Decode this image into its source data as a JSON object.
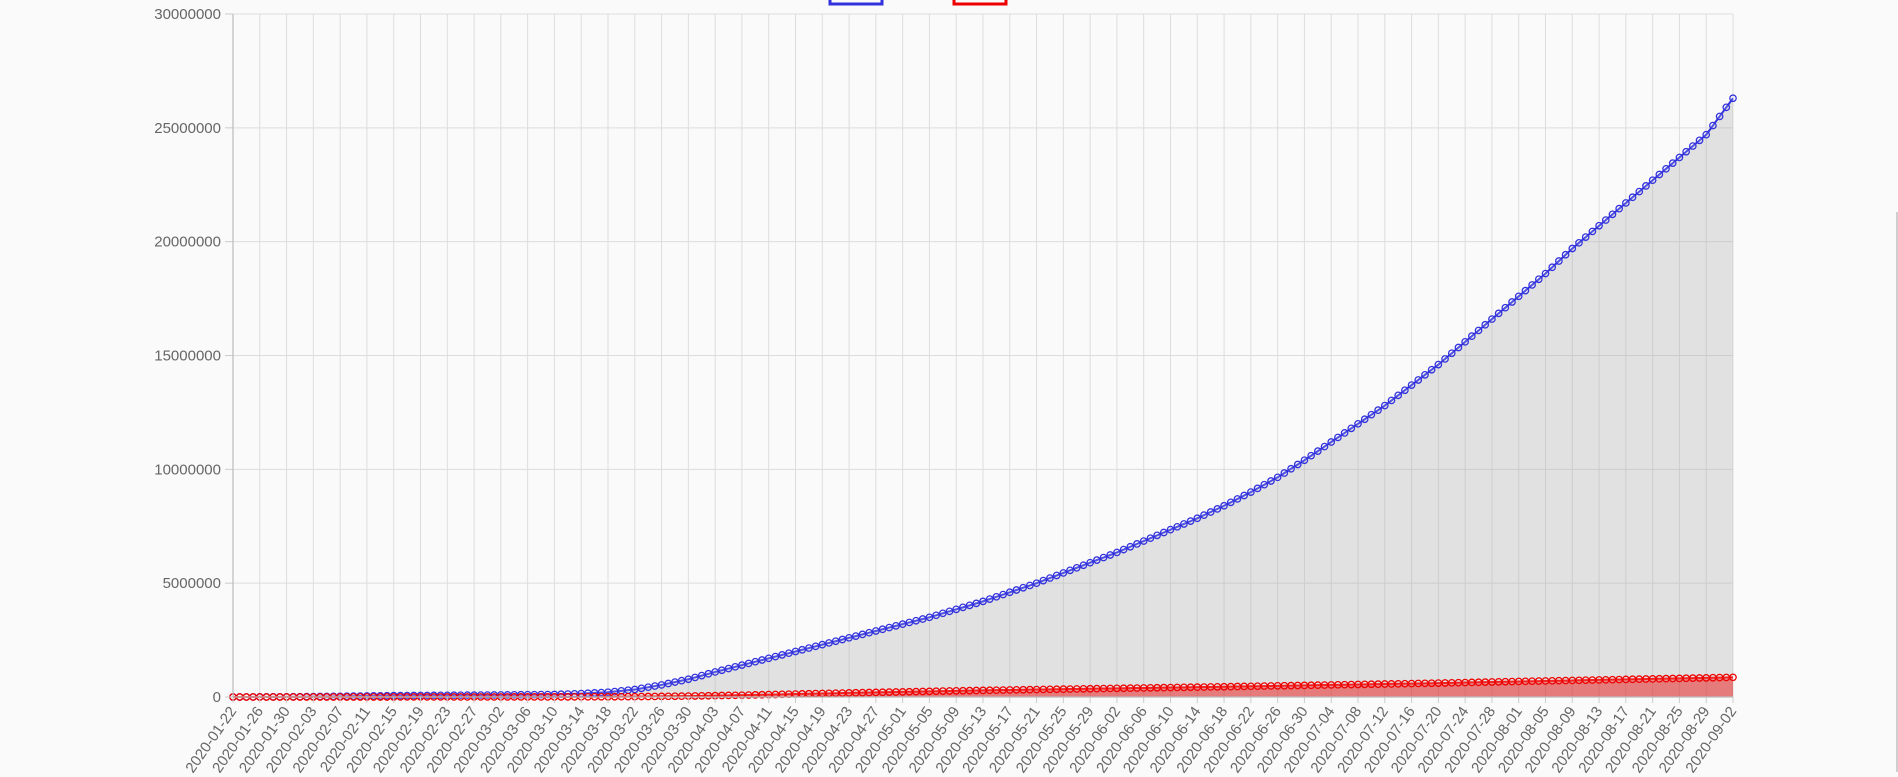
{
  "chart_data": {
    "type": "line",
    "title": "",
    "xlabel": "",
    "ylabel": "",
    "ylim": [
      0,
      30000000
    ],
    "y_ticks": [
      "0",
      "5000000",
      "10000000",
      "15000000",
      "20000000",
      "25000000",
      "30000000"
    ],
    "x_range": [
      "2020-01-22",
      "2020-09-02"
    ],
    "x_tick_labels": [
      "2020-01-22",
      "2020-01-26",
      "2020-01-30",
      "2020-02-03",
      "2020-02-07",
      "2020-02-11",
      "2020-02-15",
      "2020-02-19",
      "2020-02-23",
      "2020-02-27",
      "2020-03-02",
      "2020-03-06",
      "2020-03-10",
      "2020-03-14",
      "2020-03-18",
      "2020-03-22",
      "2020-03-26",
      "2020-03-30",
      "2020-04-03",
      "2020-04-07",
      "2020-04-11",
      "2020-04-15",
      "2020-04-19",
      "2020-04-23",
      "2020-04-27",
      "2020-05-01",
      "2020-05-05",
      "2020-05-09",
      "2020-05-13",
      "2020-05-17",
      "2020-05-21",
      "2020-05-25",
      "2020-05-29",
      "2020-06-02",
      "2020-06-06",
      "2020-06-10",
      "2020-06-14",
      "2020-06-18",
      "2020-06-22",
      "2020-06-26",
      "2020-06-30",
      "2020-07-04",
      "2020-07-08",
      "2020-07-12",
      "2020-07-16",
      "2020-07-20",
      "2020-07-24",
      "2020-07-28",
      "2020-08-01",
      "2020-08-05",
      "2020-08-09",
      "2020-08-13",
      "2020-08-17",
      "2020-08-21",
      "2020-08-25",
      "2020-08-29",
      "2020-09-02"
    ],
    "grid": true,
    "legend": "top-center",
    "series": [
      {
        "color": "#3333dd",
        "fill": "rgba(170,170,170,0.3)",
        "points": [
          [
            "2020-01-22",
            0
          ],
          [
            "2020-01-30",
            8000
          ],
          [
            "2020-02-07",
            30000
          ],
          [
            "2020-02-15",
            60000
          ],
          [
            "2020-02-23",
            75000
          ],
          [
            "2020-03-02",
            90000
          ],
          [
            "2020-03-10",
            110000
          ],
          [
            "2020-03-14",
            150000
          ],
          [
            "2020-03-18",
            210000
          ],
          [
            "2020-03-22",
            330000
          ],
          [
            "2020-03-26",
            530000
          ],
          [
            "2020-03-30",
            780000
          ],
          [
            "2020-04-03",
            1100000
          ],
          [
            "2020-04-07",
            1400000
          ],
          [
            "2020-04-11",
            1700000
          ],
          [
            "2020-04-15",
            2000000
          ],
          [
            "2020-04-19",
            2300000
          ],
          [
            "2020-04-23",
            2600000
          ],
          [
            "2020-04-27",
            2900000
          ],
          [
            "2020-05-01",
            3200000
          ],
          [
            "2020-05-05",
            3500000
          ],
          [
            "2020-05-09",
            3850000
          ],
          [
            "2020-05-13",
            4200000
          ],
          [
            "2020-05-17",
            4600000
          ],
          [
            "2020-05-21",
            5000000
          ],
          [
            "2020-05-25",
            5450000
          ],
          [
            "2020-05-29",
            5900000
          ],
          [
            "2020-06-02",
            6350000
          ],
          [
            "2020-06-06",
            6850000
          ],
          [
            "2020-06-10",
            7350000
          ],
          [
            "2020-06-14",
            7850000
          ],
          [
            "2020-06-18",
            8400000
          ],
          [
            "2020-06-22",
            9000000
          ],
          [
            "2020-06-26",
            9650000
          ],
          [
            "2020-06-30",
            10400000
          ],
          [
            "2020-07-04",
            11200000
          ],
          [
            "2020-07-08",
            12000000
          ],
          [
            "2020-07-12",
            12800000
          ],
          [
            "2020-07-16",
            13700000
          ],
          [
            "2020-07-20",
            14600000
          ],
          [
            "2020-07-24",
            15600000
          ],
          [
            "2020-07-28",
            16600000
          ],
          [
            "2020-08-01",
            17600000
          ],
          [
            "2020-08-05",
            18600000
          ],
          [
            "2020-08-09",
            19700000
          ],
          [
            "2020-08-13",
            20700000
          ],
          [
            "2020-08-17",
            21700000
          ],
          [
            "2020-08-21",
            22700000
          ],
          [
            "2020-08-25",
            23700000
          ],
          [
            "2020-08-29",
            24700000
          ],
          [
            "2020-09-02",
            26300000
          ]
        ]
      },
      {
        "color": "#ee0000",
        "fill": "rgba(238,0,0,0.45)",
        "points": [
          [
            "2020-01-22",
            0
          ],
          [
            "2020-02-07",
            500
          ],
          [
            "2020-02-23",
            2500
          ],
          [
            "2020-03-10",
            4500
          ],
          [
            "2020-03-22",
            15000
          ],
          [
            "2020-03-30",
            40000
          ],
          [
            "2020-04-07",
            80000
          ],
          [
            "2020-04-15",
            130000
          ],
          [
            "2020-04-23",
            180000
          ],
          [
            "2020-05-01",
            225000
          ],
          [
            "2020-05-09",
            270000
          ],
          [
            "2020-05-17",
            310000
          ],
          [
            "2020-05-25",
            345000
          ],
          [
            "2020-06-02",
            380000
          ],
          [
            "2020-06-10",
            415000
          ],
          [
            "2020-06-18",
            450000
          ],
          [
            "2020-06-26",
            490000
          ],
          [
            "2020-07-04",
            530000
          ],
          [
            "2020-07-12",
            570000
          ],
          [
            "2020-07-20",
            610000
          ],
          [
            "2020-07-28",
            660000
          ],
          [
            "2020-08-05",
            705000
          ],
          [
            "2020-08-13",
            750000
          ],
          [
            "2020-08-21",
            795000
          ],
          [
            "2020-08-29",
            840000
          ],
          [
            "2020-09-02",
            865000
          ]
        ]
      }
    ]
  }
}
